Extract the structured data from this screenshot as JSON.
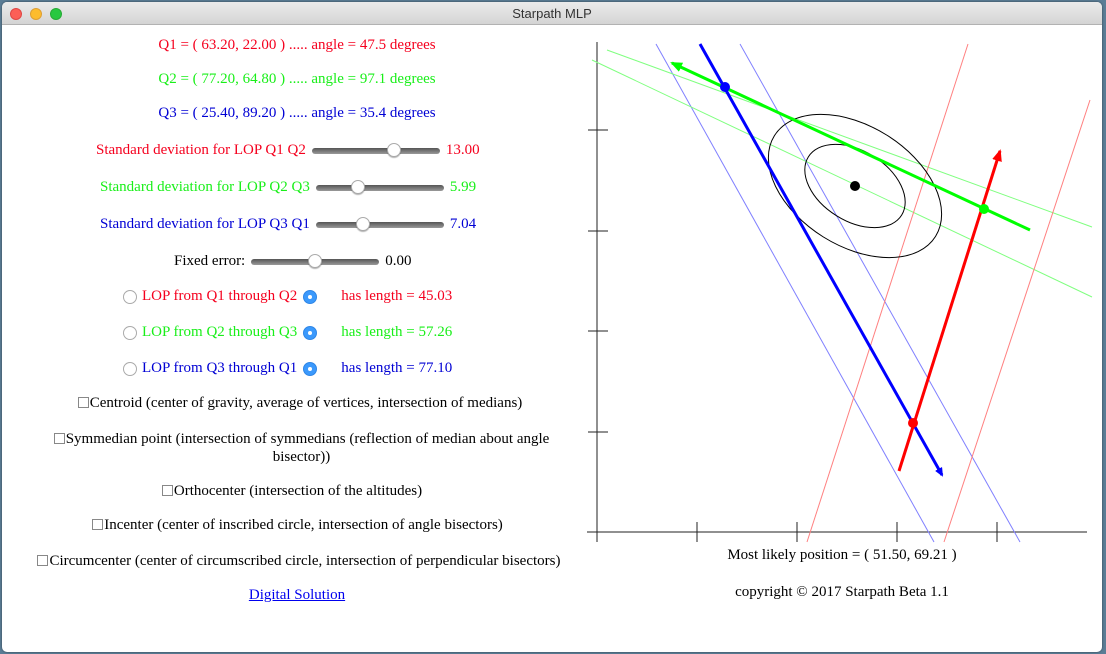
{
  "window": {
    "title": "Starpath MLP"
  },
  "sights": [
    {
      "text": "Q1 = ( 63.20, 22.00 ) ..... angle = 47.5 degrees",
      "color": "red"
    },
    {
      "text": "Q2 = ( 77.20, 64.80 ) ..... angle = 97.1 degrees",
      "color": "green"
    },
    {
      "text": "Q3 = ( 25.40, 89.20 ) ..... angle = 35.4 degrees",
      "color": "blue"
    }
  ],
  "sliders": [
    {
      "label": "Standard deviation for LOP Q1 Q2",
      "value": "13.00",
      "fraction": 0.64
    },
    {
      "label": "Standard deviation for LOP Q2 Q3",
      "value": "5.99",
      "fraction": 0.33
    },
    {
      "label": "Standard deviation for LOP Q3 Q1",
      "value": "7.04",
      "fraction": 0.37
    },
    {
      "label": "Fixed error:",
      "value": "0.00",
      "fraction": 0.5
    }
  ],
  "lops": [
    {
      "label": "LOP from Q1 through Q2",
      "length": "has length = 45.03"
    },
    {
      "label": "LOP from Q2 through Q3",
      "length": "has length = 57.26"
    },
    {
      "label": "LOP from Q3 through Q1",
      "length": "has length = 77.10"
    }
  ],
  "options": [
    {
      "label": "Centroid (center of gravity, average of vertices, intersection of medians)"
    },
    {
      "label": "Symmedian point (intersection of symmedians (reflection of median about angle bisector))"
    },
    {
      "label": "Orthocenter (intersection of the altitudes)"
    },
    {
      "label": "Incenter (center of inscribed circle, intersection of angle bisectors)"
    },
    {
      "label": "Circumcenter (center of circumscribed circle, intersection of perpendicular bisectors)"
    }
  ],
  "link": "Digital Solution",
  "result": "Most likely position = ( 51.50, 69.21 )",
  "copyright": "copyright © 2017 Starpath Beta 1.1",
  "colors": {
    "red": "#f5001e",
    "green": "#19ef19",
    "blue": "#0000d4"
  }
}
